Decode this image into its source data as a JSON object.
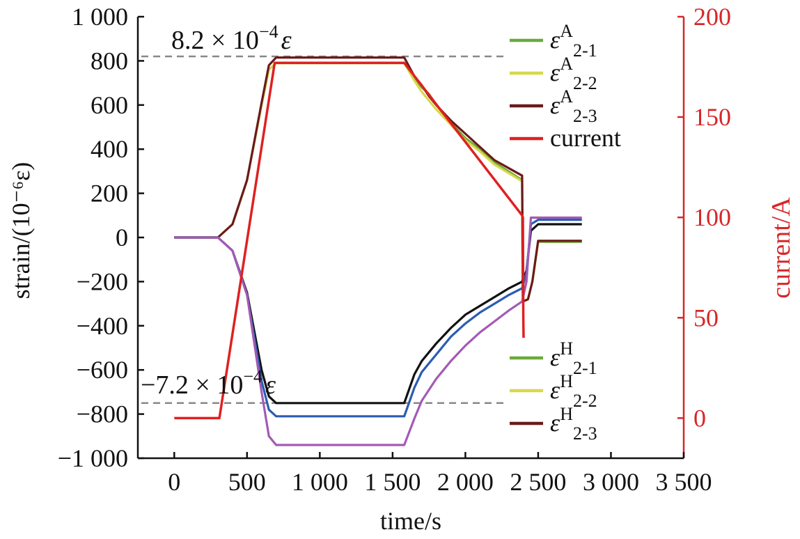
{
  "chart_data": {
    "type": "line",
    "xlabel": "time/s",
    "ylabel_left": "strain/(10⁻⁶ε)",
    "ylabel_right": "current/A",
    "x_ticks": [
      "0",
      "500",
      "1 000",
      "1 500",
      "2 000",
      "2 500",
      "3 000",
      "3 500"
    ],
    "x_tick_values": [
      0,
      500,
      1000,
      1500,
      2000,
      2500,
      3000,
      3500
    ],
    "y_left_ticks": [
      "1 000",
      "800",
      "600",
      "400",
      "200",
      "0",
      "−200",
      "−400",
      "−600",
      "−800",
      "−1 000"
    ],
    "y_left_tick_values": [
      1000,
      800,
      600,
      400,
      200,
      0,
      -200,
      -400,
      -600,
      -800,
      -1000
    ],
    "y_right_ticks": [
      "200",
      "150",
      "100",
      "50",
      "0"
    ],
    "y_right_tick_values": [
      200,
      150,
      100,
      50,
      0
    ],
    "xlim": [
      -250,
      3500
    ],
    "ylim_left": [
      -1000,
      1000
    ],
    "ylim_right": [
      -20,
      200
    ],
    "annotations": [
      {
        "text_a": "8.2 × 10",
        "sup": "−4",
        "text_b": "ε",
        "y": 820
      },
      {
        "text_a": "−7.2 × 10",
        "sup": "−4",
        "text_b": "ε",
        "y": -750
      }
    ],
    "legend_top": [
      {
        "eps": "ε",
        "sup": "A",
        "sub": "2-1",
        "color": "#6aaa3a"
      },
      {
        "eps": "ε",
        "sup": "A",
        "sub": "2-2",
        "color": "#d8d84a"
      },
      {
        "eps": "ε",
        "sup": "A",
        "sub": "2-3",
        "color": "#6b1a1a"
      },
      {
        "label": "current",
        "color": "#e02020"
      }
    ],
    "legend_bottom": [
      {
        "eps": "ε",
        "sup": "H",
        "sub": "2-1",
        "color": "#6aaa3a"
      },
      {
        "eps": "ε",
        "sup": "H",
        "sub": "2-2",
        "color": "#d8d84a"
      },
      {
        "eps": "ε",
        "sup": "H",
        "sub": "2-3",
        "color": "#6b1a1a"
      }
    ],
    "series": [
      {
        "key": "A2-1",
        "axis": "left",
        "color": "#6aaa3a",
        "x": [
          0,
          300,
          400,
          500,
          600,
          650,
          700,
          1580,
          1650,
          1700,
          1750,
          1800,
          1900,
          2000,
          2100,
          2200,
          2390,
          2395,
          2430,
          2460,
          2500,
          2550,
          2800
        ],
        "y": [
          0,
          0,
          60,
          260,
          600,
          760,
          790,
          790,
          720,
          680,
          650,
          600,
          520,
          450,
          400,
          340,
          260,
          -290,
          -280,
          -200,
          -20,
          -20,
          -20
        ]
      },
      {
        "key": "A2-2",
        "axis": "left",
        "color": "#d8d84a",
        "x": [
          0,
          300,
          400,
          500,
          600,
          650,
          700,
          1580,
          1650,
          1700,
          1750,
          1800,
          1900,
          2000,
          2100,
          2200,
          2390,
          2395,
          2430,
          2460,
          2500,
          2550,
          2800
        ],
        "y": [
          0,
          0,
          60,
          260,
          600,
          760,
          790,
          790,
          710,
          660,
          620,
          580,
          510,
          440,
          390,
          330,
          255,
          -290,
          -280,
          -200,
          -15,
          -15,
          -15
        ]
      },
      {
        "key": "A2-3",
        "axis": "left",
        "color": "#6b1a1a",
        "x": [
          0,
          300,
          400,
          500,
          600,
          650,
          700,
          1580,
          1650,
          1700,
          1750,
          1800,
          1900,
          2000,
          2100,
          2200,
          2390,
          2395,
          2430,
          2460,
          2500,
          2550,
          2800
        ],
        "y": [
          0,
          0,
          60,
          260,
          610,
          780,
          815,
          815,
          730,
          690,
          640,
          600,
          530,
          470,
          410,
          350,
          280,
          -290,
          -280,
          -200,
          -15,
          -15,
          -15
        ]
      },
      {
        "key": "H-black",
        "axis": "left",
        "color": "#111111",
        "x": [
          0,
          300,
          400,
          500,
          600,
          650,
          700,
          800,
          1580,
          1650,
          1700,
          1800,
          1900,
          2000,
          2100,
          2200,
          2300,
          2390,
          2420,
          2450,
          2500,
          2800
        ],
        "y": [
          0,
          0,
          -60,
          -250,
          -600,
          -720,
          -750,
          -750,
          -750,
          -620,
          -560,
          -480,
          -410,
          -350,
          -310,
          -270,
          -230,
          -200,
          -150,
          30,
          60,
          60
        ]
      },
      {
        "key": "H-blue",
        "axis": "left",
        "color": "#2a5db0",
        "x": [
          0,
          300,
          400,
          500,
          600,
          650,
          700,
          800,
          1580,
          1650,
          1700,
          1800,
          1900,
          2000,
          2100,
          2200,
          2300,
          2390,
          2420,
          2450,
          2500,
          2800
        ],
        "y": [
          0,
          0,
          -60,
          -260,
          -650,
          -780,
          -810,
          -810,
          -810,
          -680,
          -610,
          -530,
          -450,
          -390,
          -340,
          -300,
          -260,
          -230,
          -160,
          60,
          80,
          80
        ]
      },
      {
        "key": "H-purple",
        "axis": "left",
        "color": "#a35ab5",
        "x": [
          0,
          300,
          400,
          500,
          600,
          650,
          700,
          800,
          1580,
          1650,
          1700,
          1800,
          1900,
          2000,
          2100,
          2200,
          2300,
          2390,
          2420,
          2450,
          2500,
          2800
        ],
        "y": [
          0,
          0,
          -60,
          -260,
          -700,
          -900,
          -940,
          -940,
          -940,
          -820,
          -740,
          -640,
          -560,
          -490,
          -430,
          -380,
          -330,
          -290,
          -200,
          90,
          90,
          90
        ]
      },
      {
        "key": "current",
        "axis": "right",
        "color": "#e02020",
        "x": [
          0,
          310,
          690,
          1580,
          2390,
          2395,
          2398,
          2400
        ],
        "y": [
          0,
          0,
          177,
          177,
          101,
          100,
          50,
          40
        ]
      }
    ],
    "dashed_lines_y": [
      820,
      -750
    ]
  }
}
